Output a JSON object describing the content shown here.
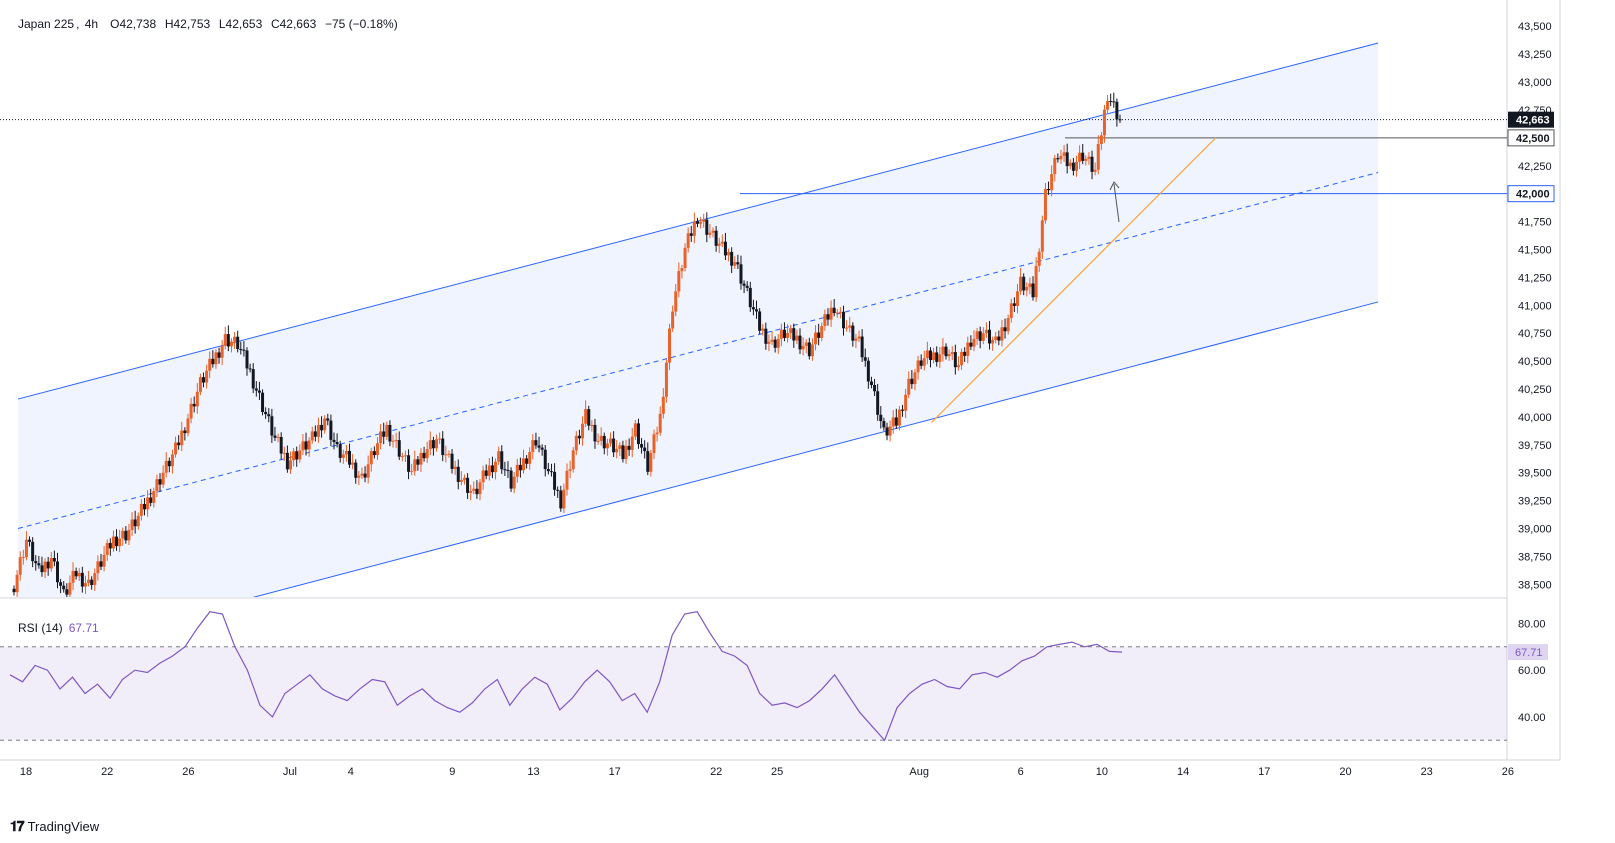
{
  "header": {
    "symbol": "Japan 225",
    "timeframe": "4h",
    "open": "O42,738",
    "high": "H42,753",
    "low": "L42,653",
    "close": "C42,663",
    "change": "−75 (−0.18%)"
  },
  "rsi": {
    "label": "RSI (14)",
    "value": "67.71"
  },
  "brand": {
    "name": "TradingView"
  },
  "colors": {
    "up": "#e8622a",
    "down": "#131722",
    "channel": "#2962ff",
    "trend": "#f7a334",
    "rsi": "#7e57c2",
    "level": "#131722"
  },
  "chart_data": [
    {
      "type": "candlestick",
      "title": "Japan 225, 4h",
      "price_labels": [
        "43,500",
        "43,250",
        "43,000",
        "42,750",
        "42,500",
        "42,250",
        "42,000",
        "41,750",
        "41,500",
        "41,250",
        "41,000",
        "40,750",
        "40,500",
        "40,250",
        "40,000",
        "39,750",
        "39,500",
        "39,250",
        "39,000",
        "38,750",
        "38,500"
      ],
      "x_tick_labels": [
        "18",
        "22",
        "26",
        "Jul",
        "4",
        "9",
        "13",
        "17",
        "22",
        "25",
        "Aug",
        "6",
        "10",
        "14",
        "17",
        "20",
        "23",
        "26"
      ],
      "ylim": [
        38400,
        43650
      ],
      "last_price": "42,663",
      "horizontal_levels": [
        {
          "label": "42,500",
          "value": 42500
        },
        {
          "label": "42,000",
          "value": 42000
        }
      ],
      "ascending_channel": {
        "upper": [
          {
            "x": "18 Jun",
            "y": 40160
          },
          {
            "x": "24 Aug",
            "y": 43350
          }
        ],
        "middle": [
          {
            "x": "18 Jun",
            "y": 39000
          },
          {
            "x": "24 Aug",
            "y": 42190
          }
        ],
        "lower": [
          {
            "x": "18 Jun",
            "y": 37830
          },
          {
            "x": "24 Aug",
            "y": 41030
          }
        ]
      },
      "trendline": [
        {
          "x": "2 Aug",
          "y": 39950
        },
        {
          "x": "16 Aug",
          "y": 42500
        }
      ],
      "close_path": [
        [
          0,
          38500
        ],
        [
          1,
          38900
        ],
        [
          2,
          38600
        ],
        [
          3,
          38750
        ],
        [
          4,
          38400
        ],
        [
          5,
          38600
        ],
        [
          6,
          38500
        ],
        [
          7,
          38700
        ],
        [
          8,
          38900
        ],
        [
          9,
          38950
        ],
        [
          10,
          39100
        ],
        [
          11,
          39300
        ],
        [
          12,
          39500
        ],
        [
          13,
          39700
        ],
        [
          14,
          40000
        ],
        [
          15,
          40300
        ],
        [
          16,
          40500
        ],
        [
          17,
          40700
        ],
        [
          18,
          40650
        ],
        [
          19,
          40400
        ],
        [
          20,
          40100
        ],
        [
          21,
          39800
        ],
        [
          22,
          39600
        ],
        [
          23,
          39700
        ],
        [
          24,
          39800
        ],
        [
          25,
          40000
        ],
        [
          26,
          39700
        ],
        [
          27,
          39600
        ],
        [
          28,
          39450
        ],
        [
          29,
          39700
        ],
        [
          30,
          39900
        ],
        [
          31,
          39700
        ],
        [
          32,
          39500
        ],
        [
          33,
          39700
        ],
        [
          34,
          39800
        ],
        [
          35,
          39600
        ],
        [
          36,
          39450
        ],
        [
          37,
          39300
        ],
        [
          38,
          39500
        ],
        [
          39,
          39650
        ],
        [
          40,
          39400
        ],
        [
          41,
          39600
        ],
        [
          42,
          39800
        ],
        [
          43,
          39500
        ],
        [
          44,
          39250
        ],
        [
          45,
          39700
        ],
        [
          46,
          40000
        ],
        [
          47,
          39800
        ],
        [
          48,
          39750
        ],
        [
          49,
          39650
        ],
        [
          50,
          39900
        ],
        [
          51,
          39550
        ],
        [
          52,
          40000
        ],
        [
          53,
          41000
        ],
        [
          54,
          41500
        ],
        [
          55,
          41800
        ],
        [
          56,
          41650
        ],
        [
          57,
          41500
        ],
        [
          58,
          41400
        ],
        [
          59,
          41100
        ],
        [
          60,
          40800
        ],
        [
          61,
          40650
        ],
        [
          62,
          40750
        ],
        [
          63,
          40700
        ],
        [
          64,
          40600
        ],
        [
          65,
          40800
        ],
        [
          66,
          41000
        ],
        [
          67,
          40800
        ],
        [
          68,
          40650
        ],
        [
          69,
          40300
        ],
        [
          70,
          39850
        ],
        [
          71,
          39950
        ],
        [
          72,
          40300
        ],
        [
          73,
          40500
        ],
        [
          74,
          40550
        ],
        [
          75,
          40600
        ],
        [
          76,
          40450
        ],
        [
          77,
          40700
        ],
        [
          78,
          40750
        ],
        [
          79,
          40650
        ],
        [
          80,
          40900
        ],
        [
          81,
          41200
        ],
        [
          82,
          41100
        ],
        [
          83,
          42000
        ],
        [
          84,
          42350
        ],
        [
          85,
          42250
        ],
        [
          86,
          42350
        ],
        [
          87,
          42200
        ],
        [
          88,
          42900
        ],
        [
          89,
          42663
        ]
      ]
    },
    {
      "type": "line",
      "title": "RSI (14)",
      "ylim": [
        25,
        90
      ],
      "y_tick_labels": [
        "80.00",
        "60.00",
        "40.00"
      ],
      "overbought": 70,
      "oversold": 30,
      "last_value": "67.71",
      "values": [
        58,
        55,
        62,
        60,
        52,
        57,
        50,
        54,
        48,
        56,
        60,
        59,
        63,
        66,
        70,
        78,
        85,
        84,
        70,
        60,
        45,
        40,
        50,
        54,
        58,
        52,
        49,
        47,
        52,
        56,
        55,
        45,
        49,
        52,
        47,
        44,
        42,
        46,
        52,
        56,
        45,
        52,
        57,
        54,
        43,
        48,
        55,
        60,
        55,
        47,
        50,
        42,
        55,
        75,
        84,
        85,
        76,
        68,
        66,
        62,
        50,
        45,
        46,
        44,
        47,
        52,
        58,
        50,
        42,
        36,
        30,
        44,
        50,
        54,
        56,
        53,
        52,
        58,
        59,
        57,
        60,
        64,
        66,
        70,
        71,
        72,
        70,
        71,
        68,
        67.71
      ]
    }
  ]
}
